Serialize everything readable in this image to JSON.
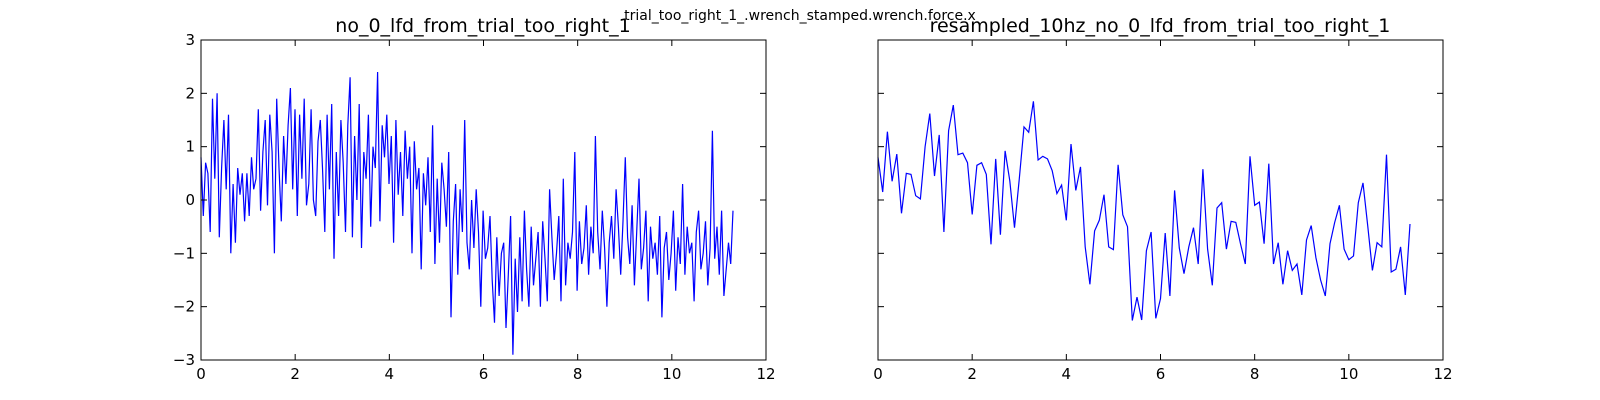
{
  "figure_title": "trial_too_right_1_.wrench_stamped.wrench.force.x",
  "chart_data": [
    {
      "type": "line",
      "title": "no_0_lfd_from_trial_too_right_1",
      "xlabel": "",
      "ylabel": "",
      "xlim": [
        0,
        12
      ],
      "ylim": [
        -3,
        3
      ],
      "xticks": [
        "0",
        "2",
        "4",
        "6",
        "8",
        "10",
        "12"
      ],
      "yticks": [
        "3",
        "2",
        "1",
        "0",
        "−1",
        "−2",
        "−3"
      ],
      "grid": false,
      "series": [
        {
          "color": "#0000ff",
          "x": [
            0,
            0.1,
            0.2,
            0.3,
            0.4,
            0.5,
            0.6,
            0.7,
            0.8,
            0.9,
            1.0,
            1.1,
            1.2,
            1.3,
            1.4,
            1.5,
            1.6,
            1.7,
            1.8,
            1.9,
            2.0,
            2.1,
            2.2,
            2.3,
            2.4,
            2.5,
            2.6,
            2.7,
            2.8,
            2.9,
            3.0,
            3.1,
            3.2,
            3.3,
            3.4,
            3.5,
            3.6,
            3.7,
            3.8,
            3.9,
            4.0,
            4.1,
            4.2,
            4.3,
            4.4,
            4.5,
            4.6,
            4.7,
            4.8,
            4.9,
            5.0,
            5.1,
            5.2,
            5.3,
            5.4,
            5.5,
            5.6,
            5.7,
            5.8,
            5.9,
            6.0,
            6.1,
            6.2,
            6.3,
            6.4,
            6.5,
            6.6,
            6.7,
            6.8,
            6.9,
            7.0,
            7.1,
            7.2,
            7.3,
            7.4,
            7.5,
            7.6,
            7.7,
            7.8,
            7.9,
            8.0,
            8.1,
            8.2,
            8.3,
            8.4,
            8.5,
            8.6,
            8.7,
            8.8,
            8.9,
            9.0,
            9.1,
            9.2,
            9.3,
            9.4,
            9.5,
            9.6,
            9.7,
            9.8,
            9.9,
            10.0,
            10.1,
            10.2,
            10.3,
            10.4,
            10.5,
            10.6,
            10.7,
            10.8,
            10.9,
            11.0,
            11.1,
            11.2,
            11.3
          ],
          "y": [
            0.8,
            0.2,
            1.3,
            0.4,
            0.9,
            -0.2,
            0.5,
            0.5,
            0.1,
            0.0,
            1.0,
            1.6,
            0.5,
            1.3,
            1.8,
            0.9,
            0.9,
            0.7,
            -0.3,
            0.6,
            0.7,
            0.5,
            -0.8,
            0.7,
            -0.7,
            0.9,
            0.4,
            -0.5,
            0.4,
            1.4,
            1.3,
            1.8,
            0.8,
            0.8,
            0.7,
            0.5,
            0.1,
            0.3,
            -0.4,
            1.0,
            0.2,
            0.6,
            -0.9,
            -1.6,
            -0.6,
            -0.4,
            0.1,
            -0.9,
            -0.9,
            0.7,
            -0.3,
            -0.5,
            -2.2,
            -1.8,
            -2.2,
            -1.0,
            -0.6,
            -2.2,
            -1.8,
            -0.6,
            -1.8,
            0.2,
            -0.9,
            -1.4,
            -0.9,
            -0.5,
            -1.2,
            0.6,
            -0.9,
            -1.6,
            -0.1,
            0.0,
            -0.9,
            -0.4,
            -0.4,
            -0.8,
            -1.2,
            0.8,
            -0.1,
            0.0,
            -0.8,
            0.7,
            -1.2,
            -0.8,
            -1.6,
            -1.0,
            -1.3,
            -1.2,
            -1.8,
            -0.8,
            -0.5,
            -1.1,
            -1.5,
            -1.8,
            -0.8,
            -0.4,
            -0.1,
            -0.9,
            -1.1,
            -1.0,
            0.0,
            0.3,
            -0.5,
            -1.3,
            -0.8,
            -0.9,
            0.9,
            -1.3,
            -1.3,
            -0.8,
            -1.8,
            -0.5,
            -1.2,
            -0.2
          ]
        }
      ]
    },
    {
      "type": "line",
      "title": "resampled_10hz_no_0_lfd_from_trial_too_right_1",
      "xlabel": "",
      "ylabel": "",
      "xlim": [
        0,
        12
      ],
      "ylim": [
        -3,
        3
      ],
      "xticks": [
        "0",
        "2",
        "4",
        "6",
        "8",
        "10",
        "12"
      ],
      "yticks": [],
      "grid": false,
      "series": [
        {
          "color": "#0000ff",
          "x": [
            0,
            0.1,
            0.2,
            0.3,
            0.4,
            0.5,
            0.6,
            0.7,
            0.8,
            0.9,
            1.0,
            1.1,
            1.2,
            1.3,
            1.4,
            1.5,
            1.6,
            1.7,
            1.8,
            1.9,
            2.0,
            2.1,
            2.2,
            2.3,
            2.4,
            2.5,
            2.6,
            2.7,
            2.8,
            2.9,
            3.0,
            3.1,
            3.2,
            3.3,
            3.4,
            3.5,
            3.6,
            3.7,
            3.8,
            3.9,
            4.0,
            4.1,
            4.2,
            4.3,
            4.4,
            4.5,
            4.6,
            4.7,
            4.8,
            4.9,
            5.0,
            5.1,
            5.2,
            5.3,
            5.4,
            5.5,
            5.6,
            5.7,
            5.8,
            5.9,
            6.0,
            6.1,
            6.2,
            6.3,
            6.4,
            6.5,
            6.6,
            6.7,
            6.8,
            6.9,
            7.0,
            7.1,
            7.2,
            7.3,
            7.4,
            7.5,
            7.6,
            7.7,
            7.8,
            7.9,
            8.0,
            8.1,
            8.2,
            8.3,
            8.4,
            8.5,
            8.6,
            8.7,
            8.8,
            8.9,
            9.0,
            9.1,
            9.2,
            9.3,
            9.4,
            9.5,
            9.6,
            9.7,
            9.8,
            9.9,
            10.0,
            10.1,
            10.2,
            10.3,
            10.4,
            10.5,
            10.6,
            10.7,
            10.8,
            10.9,
            11.0,
            11.1,
            11.2,
            11.3
          ],
          "y": [
            0.8,
            0.15,
            1.28,
            0.35,
            0.86,
            -0.25,
            0.5,
            0.48,
            0.08,
            0.02,
            1.0,
            1.62,
            0.45,
            1.22,
            -0.6,
            1.3,
            1.78,
            0.85,
            0.88,
            0.7,
            -0.27,
            0.65,
            0.7,
            0.48,
            -0.83,
            0.77,
            -0.65,
            0.92,
            0.36,
            -0.52,
            0.4,
            1.37,
            1.27,
            1.85,
            0.75,
            0.82,
            0.77,
            0.55,
            0.12,
            0.28,
            -0.38,
            1.05,
            0.18,
            0.62,
            -0.88,
            -1.58,
            -0.58,
            -0.38,
            0.1,
            -0.88,
            -0.93,
            0.66,
            -0.28,
            -0.5,
            -2.26,
            -1.82,
            -2.25,
            -0.95,
            -0.6,
            -2.22,
            -1.85,
            -0.62,
            -1.8,
            0.18,
            -0.9,
            -1.38,
            -0.88,
            -0.52,
            -1.2,
            0.58,
            -0.92,
            -1.6,
            -0.15,
            -0.05,
            -0.92,
            -0.4,
            -0.42,
            -0.82,
            -1.2,
            0.82,
            -0.1,
            -0.04,
            -0.82,
            0.68,
            -1.2,
            -0.8,
            -1.58,
            -0.95,
            -1.32,
            -1.2,
            -1.78,
            -0.75,
            -0.48,
            -1.08,
            -1.5,
            -1.8,
            -0.82,
            -0.42,
            -0.1,
            -0.92,
            -1.12,
            -1.05,
            -0.05,
            0.32,
            -0.48,
            -1.32,
            -0.8,
            -0.88,
            0.85,
            -1.35,
            -1.3,
            -0.88,
            -1.78,
            -0.45
          ]
        }
      ]
    }
  ],
  "raw_series_seed": [
    0.8,
    -0.3,
    0.7,
    0.5,
    -0.6,
    1.9,
    0.4,
    2.0,
    -0.7,
    0.6,
    1.5,
    0.2,
    1.6,
    -1.0,
    0.3,
    -0.8,
    0.6,
    0.1,
    0.5,
    -0.4,
    0.5,
    -0.3,
    0.8,
    0.2,
    0.4,
    1.7,
    -0.2,
    0.9,
    1.5,
    -0.1,
    1.6,
    0.9,
    -1.0,
    1.9,
    0.6,
    -0.4,
    1.2,
    0.3,
    1.4,
    2.1,
    0.2,
    1.7,
    -0.3,
    1.6,
    0.4,
    1.9,
    -0.1,
    0.3,
    1.7,
    0.0,
    -0.3,
    1.1,
    1.5,
    0.6,
    -0.6,
    1.6,
    0.2,
    1.8,
    -1.1,
    0.9,
    -0.3,
    1.5,
    0.7,
    -0.6,
    1.4,
    2.3,
    -0.7,
    1.2,
    0.0,
    1.8,
    -0.9,
    0.9,
    0.4,
    1.6,
    -0.5,
    1.0,
    0.6,
    2.4,
    -0.4,
    1.4,
    0.8,
    1.6,
    0.3,
    1.2,
    -0.8,
    1.5,
    0.1,
    0.9,
    -0.3,
    1.3,
    0.4,
    1.0,
    -1.0,
    1.1,
    0.2,
    0.6,
    -1.3,
    0.5,
    -0.1,
    0.8,
    -0.6,
    1.4,
    -1.2,
    0.4,
    -0.8,
    0.7,
    0.2,
    -0.5,
    0.9,
    -2.2,
    -0.4,
    0.3,
    -1.4,
    0.2,
    -0.6,
    1.5,
    -0.8,
    -1.3,
    0.0,
    -0.9,
    0.2,
    -0.6,
    -2.0,
    -0.2,
    -1.1,
    -0.9,
    -0.3,
    -1.5,
    -2.3,
    -0.7,
    -1.8,
    -1.0,
    -0.8,
    -2.4,
    -1.4,
    -0.3,
    -2.9,
    -1.1,
    -2.1,
    -0.7,
    -1.9,
    -0.2,
    -1.3,
    -2.0,
    -0.5,
    -1.6,
    -1.1,
    -0.6,
    -2.0,
    -0.4,
    -1.1,
    -1.9,
    0.2,
    -0.7,
    -1.5,
    -1.0,
    -0.3,
    -1.9,
    0.4,
    -1.6,
    -0.8,
    -1.1,
    -0.6,
    0.9,
    -1.7,
    -0.4,
    -1.2,
    -0.9,
    -0.1,
    -1.4,
    -0.5,
    -1.0,
    1.2,
    -0.6,
    -1.3,
    -0.2,
    -0.9,
    -2.0,
    -0.8,
    -0.3,
    -1.1,
    0.2,
    -0.5,
    -1.4,
    -0.4,
    0.8,
    -0.7,
    -1.2,
    -0.1,
    -1.6,
    -0.6,
    0.4,
    -1.3,
    -0.9,
    -0.2,
    -1.9,
    -0.5,
    -1.1,
    -0.8,
    -1.4,
    -0.3,
    -2.2,
    -0.9,
    -0.6,
    -1.5,
    -1.0,
    -0.2,
    -1.7,
    -0.7,
    -1.2,
    0.3,
    -1.4,
    -0.5,
    -1.0,
    -0.8,
    -1.9,
    -0.6,
    -0.2,
    -1.3,
    -1.0,
    -0.4,
    -1.6,
    -0.9,
    1.3,
    -1.1,
    -0.5,
    -1.4,
    -0.2,
    -1.8,
    -1.3,
    -0.8,
    -1.2,
    -0.2
  ]
}
